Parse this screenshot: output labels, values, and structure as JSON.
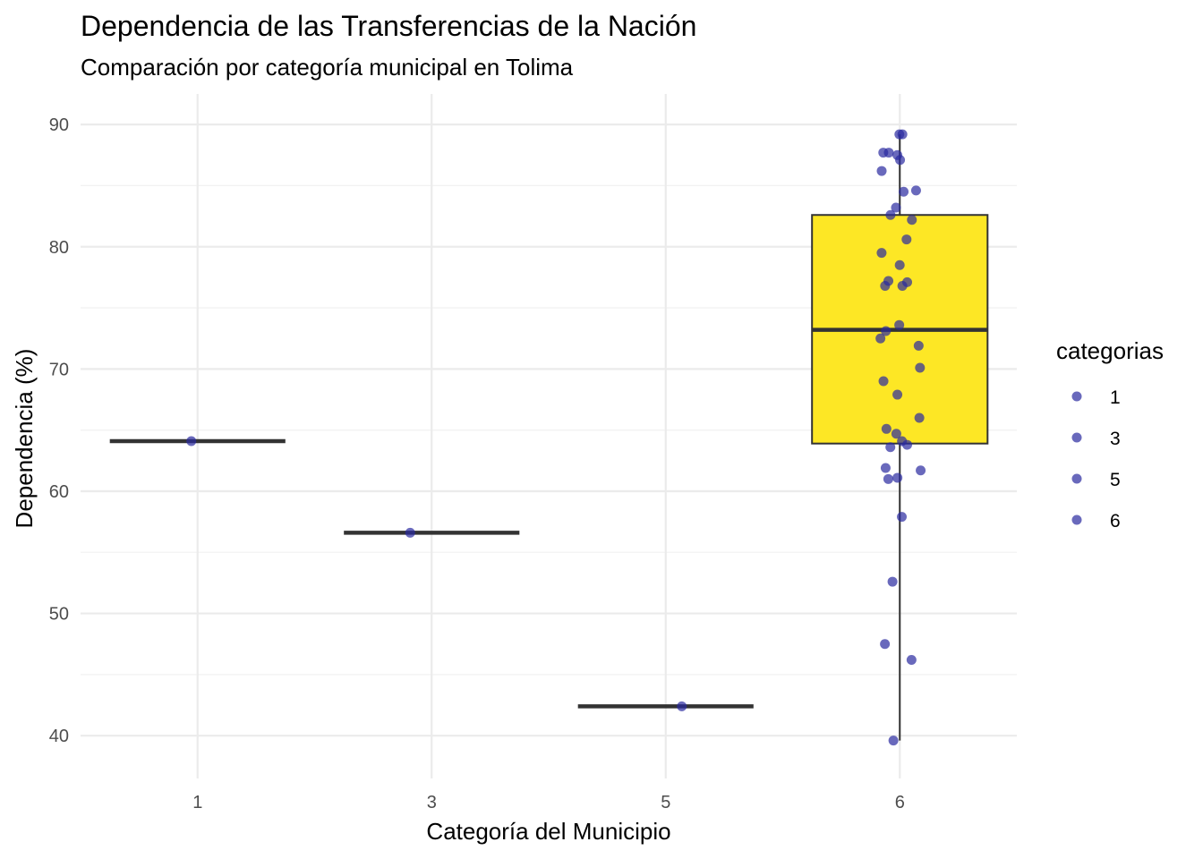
{
  "chart_data": {
    "type": "boxplot",
    "title": "Dependencia de las Transferencias de la Nación",
    "subtitle": "Comparación por categoría municipal en Tolima",
    "xlabel": "Categoría del Municipio",
    "ylabel": "Dependencia (%)",
    "categories": [
      "1",
      "3",
      "5",
      "6"
    ],
    "y_ticks": [
      40,
      50,
      60,
      70,
      80,
      90
    ],
    "ylim": [
      36.5,
      92.5
    ],
    "grid": true,
    "legend": {
      "title": "categorias",
      "entries": [
        "1",
        "3",
        "5",
        "6"
      ],
      "placement": "right"
    },
    "colors": {
      "box_fill": "#fde725",
      "box_line": "#333333",
      "point": "#2a2aa0",
      "grid": "#ebebeb"
    },
    "boxes": [
      {
        "category": "1",
        "q1": 64.1,
        "median": 64.1,
        "q3": 64.1,
        "whisker_low": 64.1,
        "whisker_high": 64.1
      },
      {
        "category": "3",
        "q1": 56.6,
        "median": 56.6,
        "q3": 56.6,
        "whisker_low": 56.6,
        "whisker_high": 56.6
      },
      {
        "category": "5",
        "q1": 42.4,
        "median": 42.4,
        "q3": 42.4,
        "whisker_low": 42.4,
        "whisker_high": 42.4
      },
      {
        "category": "6",
        "q1": 63.9,
        "median": 73.2,
        "q3": 82.6,
        "whisker_low": 39.6,
        "whisker_high": 89.2
      }
    ],
    "points": [
      {
        "category": "1",
        "y": 64.1
      },
      {
        "category": "3",
        "y": 56.6
      },
      {
        "category": "5",
        "y": 42.4
      },
      {
        "category": "6",
        "y": 89.2
      },
      {
        "category": "6",
        "y": 89.2
      },
      {
        "category": "6",
        "y": 87.7
      },
      {
        "category": "6",
        "y": 87.7
      },
      {
        "category": "6",
        "y": 87.5
      },
      {
        "category": "6",
        "y": 87.1
      },
      {
        "category": "6",
        "y": 86.2
      },
      {
        "category": "6",
        "y": 84.6
      },
      {
        "category": "6",
        "y": 84.5
      },
      {
        "category": "6",
        "y": 83.2
      },
      {
        "category": "6",
        "y": 82.6
      },
      {
        "category": "6",
        "y": 82.2
      },
      {
        "category": "6",
        "y": 80.6
      },
      {
        "category": "6",
        "y": 79.5
      },
      {
        "category": "6",
        "y": 78.5
      },
      {
        "category": "6",
        "y": 77.2
      },
      {
        "category": "6",
        "y": 77.1
      },
      {
        "category": "6",
        "y": 76.8
      },
      {
        "category": "6",
        "y": 76.8
      },
      {
        "category": "6",
        "y": 73.6
      },
      {
        "category": "6",
        "y": 73.1
      },
      {
        "category": "6",
        "y": 72.5
      },
      {
        "category": "6",
        "y": 71.9
      },
      {
        "category": "6",
        "y": 70.1
      },
      {
        "category": "6",
        "y": 69.0
      },
      {
        "category": "6",
        "y": 67.9
      },
      {
        "category": "6",
        "y": 66.0
      },
      {
        "category": "6",
        "y": 65.1
      },
      {
        "category": "6",
        "y": 64.7
      },
      {
        "category": "6",
        "y": 64.1
      },
      {
        "category": "6",
        "y": 63.8
      },
      {
        "category": "6",
        "y": 63.6
      },
      {
        "category": "6",
        "y": 61.9
      },
      {
        "category": "6",
        "y": 61.7
      },
      {
        "category": "6",
        "y": 61.1
      },
      {
        "category": "6",
        "y": 61.0
      },
      {
        "category": "6",
        "y": 57.9
      },
      {
        "category": "6",
        "y": 52.6
      },
      {
        "category": "6",
        "y": 47.5
      },
      {
        "category": "6",
        "y": 46.2
      },
      {
        "category": "6",
        "y": 39.6
      }
    ]
  }
}
